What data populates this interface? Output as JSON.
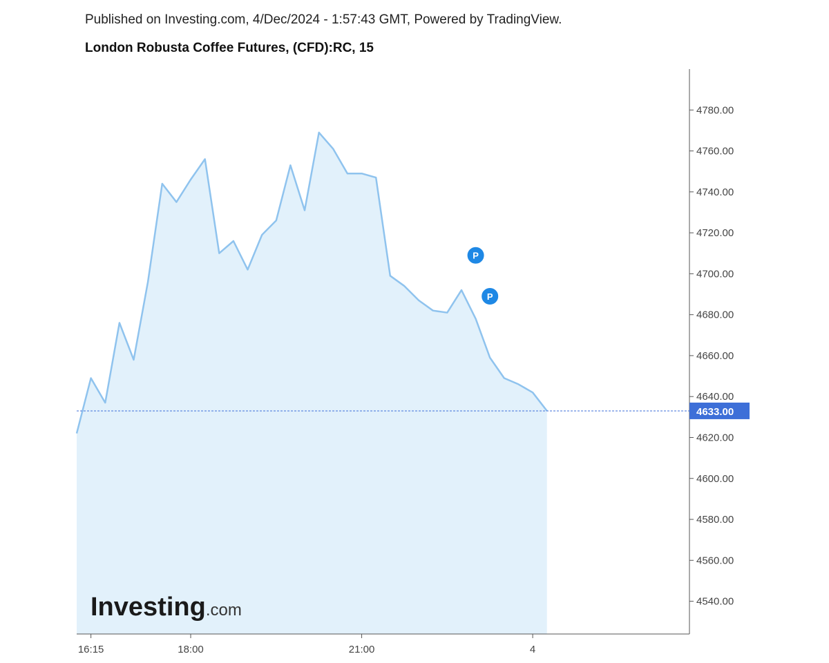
{
  "header": {
    "published": "Published on Investing.com, 4/Dec/2024 - 1:57:43 GMT, Powered by TradingView.",
    "title": "London Robusta Coffee Futures, (CFD):RC, 15"
  },
  "logo": {
    "main": "Investing",
    "suffix": ".com"
  },
  "colors": {
    "line": "#8fc3ee",
    "fill": "#e2f1fb",
    "last_price_bg": "#3d6fd8",
    "marker": "#1e88e5",
    "axis": "#555555"
  },
  "chart_data": {
    "type": "area",
    "title": "London Robusta Coffee Futures, (CFD):RC, 15",
    "ylim": [
      4524,
      4800
    ],
    "y_ticks": [
      "4540.00",
      "4560.00",
      "4580.00",
      "4600.00",
      "4620.00",
      "4640.00",
      "4660.00",
      "4680.00",
      "4700.00",
      "4720.00",
      "4740.00",
      "4760.00",
      "4780.00"
    ],
    "x_ticks": [
      {
        "label": "16:15",
        "t": 16.25
      },
      {
        "label": "18:00",
        "t": 18.0
      },
      {
        "label": "21:00",
        "t": 21.0
      },
      {
        "label": "4",
        "t": 24.0
      }
    ],
    "x_range": [
      16.0,
      26.75
    ],
    "grid": false,
    "series": [
      {
        "x": [
          16.0,
          16.25,
          16.5,
          16.75,
          17.0,
          17.25,
          17.5,
          17.75,
          18.0,
          18.25,
          18.5,
          18.75,
          19.0,
          19.25,
          19.5,
          19.75,
          20.0,
          20.25,
          20.5,
          20.75,
          21.0,
          21.25,
          21.5,
          21.75,
          22.0,
          22.25,
          22.5,
          22.75,
          23.0,
          23.25,
          23.5,
          23.75,
          24.0,
          24.25
        ],
        "values": [
          4622,
          4649,
          4637,
          4676,
          4658,
          4696,
          4744,
          4735,
          4746,
          4756,
          4710,
          4716,
          4702,
          4719,
          4726,
          4753,
          4731,
          4769,
          4761,
          4749,
          4749,
          4747,
          4699,
          4694,
          4687,
          4682,
          4681,
          4692,
          4678,
          4659,
          4649,
          4646,
          4642,
          4633
        ]
      }
    ],
    "last_price": {
      "value": 4633,
      "label": "4633.00"
    },
    "markers": [
      {
        "label": "P",
        "t": 23.0,
        "value": 4709
      },
      {
        "label": "P",
        "t": 23.25,
        "value": 4689
      }
    ]
  }
}
